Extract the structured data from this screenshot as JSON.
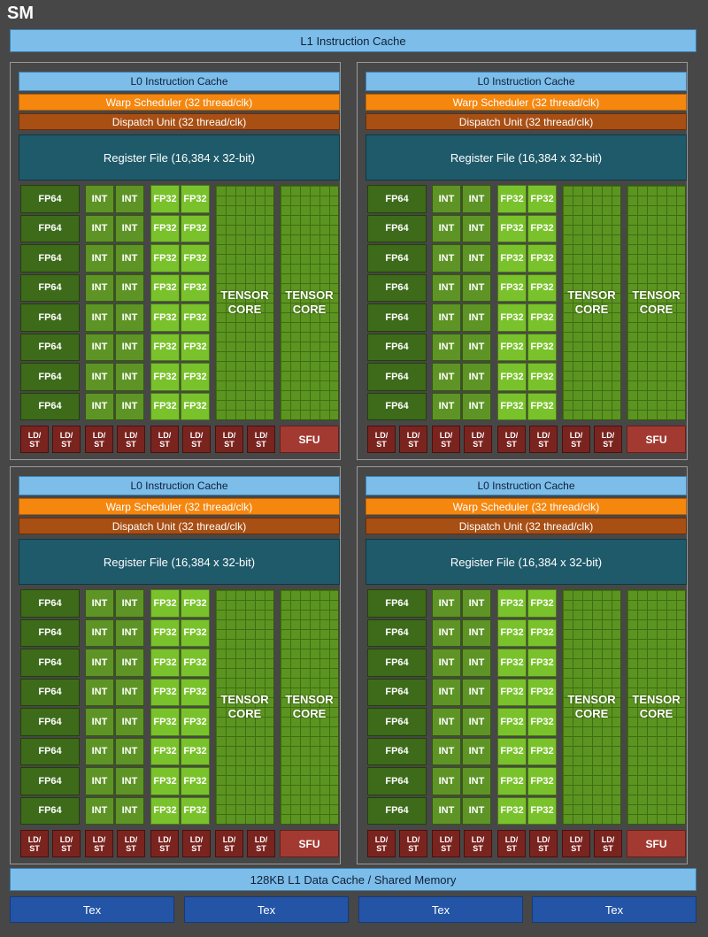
{
  "sm_label": "SM",
  "l1_instruction_cache": "L1 Instruction Cache",
  "l1_data_cache": "128KB L1 Data Cache / Shared Memory",
  "tex_units": [
    "Tex",
    "Tex",
    "Tex",
    "Tex"
  ],
  "partition": {
    "l0_cache": "L0 Instruction Cache",
    "warp_scheduler": "Warp Scheduler (32 thread/clk)",
    "dispatch_unit": "Dispatch Unit (32 thread/clk)",
    "register_file": "Register File (16,384 x 32-bit)",
    "fp64": "FP64",
    "int": "INT",
    "fp32": "FP32",
    "tensor_line1": "TENSOR",
    "tensor_line2": "CORE",
    "ldst_line1": "LD/",
    "ldst_line2": "ST",
    "sfu": "SFU"
  },
  "colors": {
    "background": "#474747",
    "cache": "#7cbde9",
    "warp_scheduler": "#f5870f",
    "dispatch_unit": "#a84f14",
    "register_file": "#1e5a6a",
    "fp64": "#3d6b1a",
    "int": "#5e9426",
    "fp32": "#7ac22c",
    "tensor_core": "#5c9421",
    "ldst": "#7a2420",
    "sfu": "#a33a32",
    "tex": "#2354a6"
  }
}
